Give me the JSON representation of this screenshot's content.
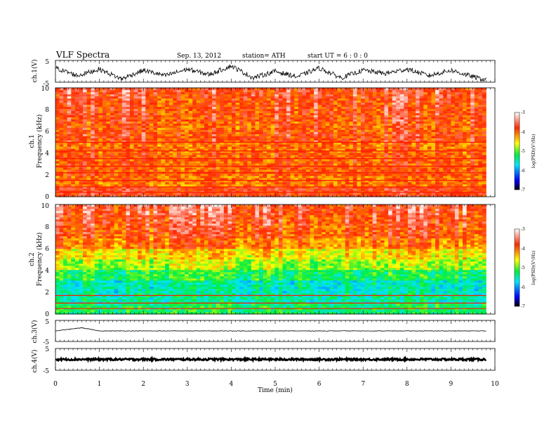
{
  "header": {
    "title": "VLF  Spectra",
    "date": "Sep. 13, 2012",
    "station": "station= ATH",
    "start": "start  UT  =    6  : 0  : 0"
  },
  "panels": {
    "ch1_wave": {
      "ylabel": "ch.1(V)",
      "ticks": [
        "5",
        "-5"
      ]
    },
    "ch1_spec": {
      "ylabel_top": "ch.1",
      "ylabel": "Frequency  (kHz)",
      "ticks": [
        "0",
        "2",
        "4",
        "6",
        "8",
        "10"
      ]
    },
    "ch2_spec": {
      "ylabel_top": "ch.2",
      "ylabel": "Frequency  (kHz)",
      "ticks": [
        "0",
        "2",
        "4",
        "6",
        "8",
        "10"
      ]
    },
    "ch3_wave": {
      "ylabel": "ch.3(V)",
      "ticks": [
        "5",
        "-5"
      ]
    },
    "ch4_wave": {
      "ylabel": "ch.4(V)",
      "ticks": [
        "5",
        "-5"
      ]
    }
  },
  "colorbar": {
    "label": "log(PSD)(V²/Hz)",
    "ticks": [
      "-3",
      "-4",
      "-5",
      "-6",
      "-7"
    ]
  },
  "xaxis": {
    "label": "Time  (min)",
    "ticks": [
      "0",
      "1",
      "2",
      "3",
      "4",
      "5",
      "6",
      "7",
      "8",
      "9",
      "10"
    ]
  },
  "chart_data": [
    {
      "type": "line",
      "name": "ch.1 waveform",
      "ylabel": "ch.1(V)",
      "xlim": [
        0,
        10
      ],
      "ylim": [
        -5,
        5
      ],
      "x": [
        0,
        0.5,
        1.0,
        1.5,
        2.0,
        2.5,
        3.0,
        3.5,
        4.0,
        4.5,
        5.0,
        5.5,
        6.0,
        6.5,
        7.0,
        7.5,
        8.0,
        8.5,
        9.0,
        9.5,
        9.8
      ],
      "values": [
        1.5,
        -2,
        1,
        -3.5,
        0.5,
        -2,
        1,
        -1.5,
        2.5,
        -3,
        0,
        -2.5,
        1.5,
        -3,
        0.5,
        -1,
        1,
        -2,
        0.5,
        -2.5,
        -4
      ]
    },
    {
      "type": "heatmap",
      "name": "ch.1 spectrogram",
      "xlabel": "Time (min)",
      "ylabel": "Frequency (kHz)",
      "xlim": [
        0,
        10
      ],
      "ylim": [
        0,
        10
      ],
      "data_xmax": 9.8,
      "color_scale": {
        "label": "log(PSD)(V²/Hz)",
        "range": [
          -7,
          -3
        ]
      },
      "freq_bands_khz": [
        0,
        1,
        2,
        3,
        4,
        5,
        6,
        7,
        8,
        9,
        10
      ],
      "band_mean_log_psd": [
        -3.8,
        -4.1,
        -4.0,
        -4.0,
        -4.1,
        -3.9,
        -4.0,
        -3.9,
        -3.9,
        -3.8
      ],
      "strong_lines_khz": [
        0.4,
        0.9,
        1.5,
        2.2,
        2.8,
        3.5,
        4.2,
        5.0
      ]
    },
    {
      "type": "heatmap",
      "name": "ch.2 spectrogram",
      "xlabel": "Time (min)",
      "ylabel": "Frequency (kHz)",
      "xlim": [
        0,
        10
      ],
      "ylim": [
        0,
        10
      ],
      "data_xmax": 9.8,
      "color_scale": {
        "label": "log(PSD)(V²/Hz)",
        "range": [
          -7,
          -3
        ]
      },
      "freq_bands_khz": [
        0,
        1,
        2,
        3,
        4,
        5,
        6,
        7,
        8,
        9,
        10
      ],
      "band_mean_log_psd": [
        -5.3,
        -5.5,
        -5.6,
        -5.3,
        -4.9,
        -4.6,
        -4.2,
        -4.0,
        -3.9,
        -3.8
      ],
      "strong_lines_khz": [
        0.5,
        1.0,
        1.7
      ]
    },
    {
      "type": "line",
      "name": "ch.3 waveform",
      "ylabel": "ch.3(V)",
      "xlim": [
        0,
        10
      ],
      "ylim": [
        -5,
        5
      ],
      "x": [
        0,
        0.6,
        1.0,
        2.0,
        3.0,
        4.0,
        5.0,
        6.0,
        7.0,
        8.0,
        9.0,
        9.8
      ],
      "values": [
        0,
        1.5,
        0,
        0,
        0,
        0,
        0,
        0,
        0,
        0,
        0,
        0
      ]
    },
    {
      "type": "line",
      "name": "ch.4 waveform",
      "ylabel": "ch.4(V)",
      "xlim": [
        0,
        10
      ],
      "ylim": [
        -5,
        5
      ],
      "x": [
        0,
        9.8
      ],
      "values": [
        0,
        0
      ]
    }
  ]
}
